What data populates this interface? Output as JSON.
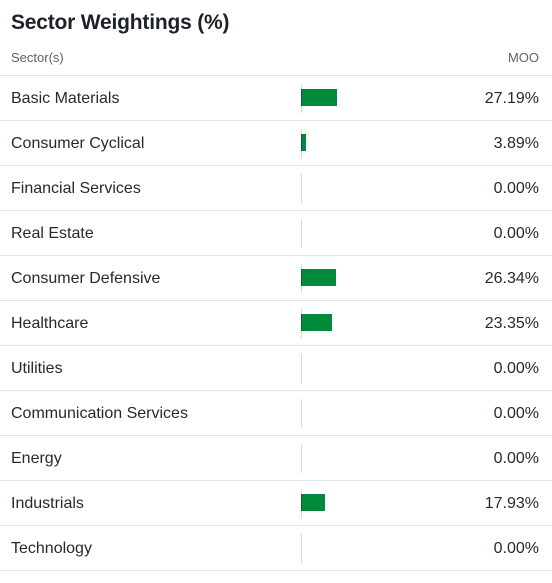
{
  "title": "Sector Weightings (%)",
  "header": {
    "left_label": "Sector(s)",
    "right_label": "MOO"
  },
  "colors": {
    "bar": "#008a3b",
    "divider": "#e0e4e9"
  },
  "sectors": [
    {
      "name": "Basic Materials",
      "value": "27.19%",
      "weight": 27.19
    },
    {
      "name": "Consumer Cyclical",
      "value": "3.89%",
      "weight": 3.89
    },
    {
      "name": "Financial Services",
      "value": "0.00%",
      "weight": 0.0
    },
    {
      "name": "Real Estate",
      "value": "0.00%",
      "weight": 0.0
    },
    {
      "name": "Consumer Defensive",
      "value": "26.34%",
      "weight": 26.34
    },
    {
      "name": "Healthcare",
      "value": "23.35%",
      "weight": 23.35
    },
    {
      "name": "Utilities",
      "value": "0.00%",
      "weight": 0.0
    },
    {
      "name": "Communication Services",
      "value": "0.00%",
      "weight": 0.0
    },
    {
      "name": "Energy",
      "value": "0.00%",
      "weight": 0.0
    },
    {
      "name": "Industrials",
      "value": "17.93%",
      "weight": 17.93
    },
    {
      "name": "Technology",
      "value": "0.00%",
      "weight": 0.0
    }
  ]
}
